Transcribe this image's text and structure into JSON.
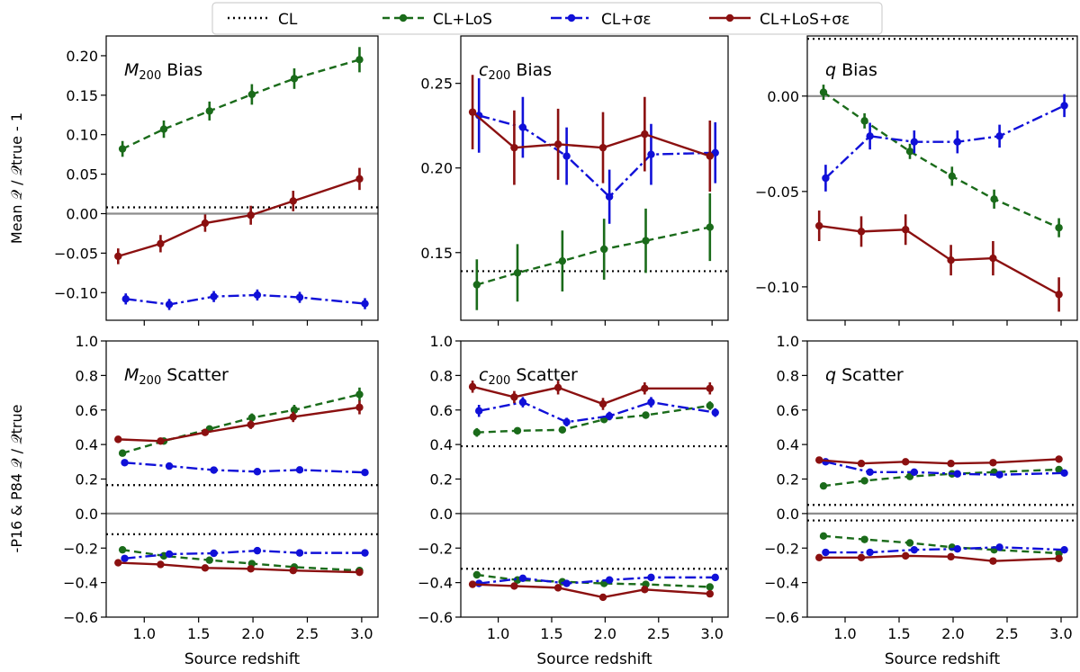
{
  "legend": {
    "entries": [
      {
        "key": "CL",
        "label": "CL",
        "color": "#000000",
        "dash": "2,4",
        "marker": false
      },
      {
        "key": "CL_LoS",
        "label": "CL+LoS",
        "color": "#1a6b1a",
        "dash": "8,5",
        "marker": true
      },
      {
        "key": "CL_se",
        "label": "CL+σε",
        "color": "#1010d8",
        "dash": "12,4,3,4",
        "marker": true
      },
      {
        "key": "CL_LoS_se",
        "label": "CL+LoS+σε",
        "color": "#8b1010",
        "dash": "",
        "marker": true
      }
    ]
  },
  "chart_data": [
    {
      "id": "m200_bias",
      "type": "line",
      "title": "M200 Bias",
      "title_main": "M",
      "title_sub": "200",
      "title_rest": " Bias",
      "ylim": [
        -0.135,
        0.225
      ],
      "yticks": [
        -0.1,
        -0.05,
        0.0,
        0.05,
        0.1,
        0.15,
        0.2
      ],
      "ytick_labels": [
        "−0.10",
        "−0.05",
        "0.00",
        "0.05",
        "0.10",
        "0.15",
        "0.20"
      ],
      "xlim": [
        0.65,
        3.15
      ],
      "xticks": [
        1.0,
        1.5,
        2.0,
        2.5,
        3.0
      ],
      "xtick_labels": [
        "1.0",
        "1.5",
        "2.0",
        "2.5",
        "3.0"
      ],
      "xlabel": "Source redshift",
      "ylabel": "Mean 𝒬 / 𝒬true - 1",
      "refline": 0,
      "cl_lines": [
        0.008
      ],
      "series": [
        {
          "key": "CL_LoS",
          "x": [
            0.8,
            1.18,
            1.6,
            1.99,
            2.38,
            2.98
          ],
          "y": [
            0.082,
            0.107,
            0.13,
            0.151,
            0.171,
            0.195
          ],
          "err": [
            0.01,
            0.011,
            0.012,
            0.013,
            0.013,
            0.016
          ]
        },
        {
          "key": "CL_LoS_se",
          "x": [
            0.76,
            1.15,
            1.56,
            1.98,
            2.37,
            2.98
          ],
          "y": [
            -0.054,
            -0.038,
            -0.012,
            -0.002,
            0.016,
            0.044
          ],
          "err": [
            0.01,
            0.011,
            0.011,
            0.012,
            0.013,
            0.014
          ]
        },
        {
          "key": "CL_se",
          "x": [
            0.83,
            1.23,
            1.64,
            2.04,
            2.43,
            3.03
          ],
          "y": [
            -0.108,
            -0.115,
            -0.105,
            -0.103,
            -0.106,
            -0.114
          ],
          "err": [
            0.007,
            0.007,
            0.007,
            0.007,
            0.007,
            0.007
          ]
        }
      ]
    },
    {
      "id": "c200_bias",
      "type": "line",
      "title": "c200 Bias",
      "title_main": "c",
      "title_sub": "200",
      "title_rest": " Bias",
      "ylim": [
        0.11,
        0.278
      ],
      "yticks": [
        0.15,
        0.2,
        0.25
      ],
      "ytick_labels": [
        "0.15",
        "0.20",
        "0.25"
      ],
      "xlim": [
        0.65,
        3.15
      ],
      "xticks": [
        1.0,
        1.5,
        2.0,
        2.5,
        3.0
      ],
      "xtick_labels": [
        "1.0",
        "1.5",
        "2.0",
        "2.5",
        "3.0"
      ],
      "xlabel": "Source redshift",
      "ylabel": "",
      "refline": null,
      "cl_lines": [
        0.139
      ],
      "series": [
        {
          "key": "CL_LoS",
          "x": [
            0.8,
            1.18,
            1.6,
            1.99,
            2.38,
            2.98
          ],
          "y": [
            0.131,
            0.138,
            0.145,
            0.152,
            0.157,
            0.165
          ],
          "err": [
            0.015,
            0.017,
            0.018,
            0.018,
            0.019,
            0.02
          ]
        },
        {
          "key": "CL_se",
          "x": [
            0.82,
            1.23,
            1.64,
            2.04,
            2.43,
            3.03
          ],
          "y": [
            0.231,
            0.224,
            0.207,
            0.183,
            0.208,
            0.209
          ],
          "err": [
            0.022,
            0.018,
            0.017,
            0.016,
            0.018,
            0.018
          ]
        },
        {
          "key": "CL_LoS_se",
          "x": [
            0.76,
            1.15,
            1.56,
            1.98,
            2.37,
            2.98
          ],
          "y": [
            0.233,
            0.212,
            0.214,
            0.212,
            0.22,
            0.207
          ],
          "err": [
            0.022,
            0.022,
            0.021,
            0.021,
            0.022,
            0.021
          ]
        }
      ]
    },
    {
      "id": "q_bias",
      "type": "line",
      "title": "q Bias",
      "title_main": "q",
      "title_sub": "",
      "title_rest": " Bias",
      "ylim": [
        -0.1175,
        0.0315
      ],
      "yticks": [
        -0.1,
        -0.05,
        0.0
      ],
      "ytick_labels": [
        "−0.10",
        "−0.05",
        "0.00"
      ],
      "xlim": [
        0.65,
        3.15
      ],
      "xticks": [
        1.0,
        1.5,
        2.0,
        2.5,
        3.0
      ],
      "xtick_labels": [
        "1.0",
        "1.5",
        "2.0",
        "2.5",
        "3.0"
      ],
      "xlabel": "Source redshift",
      "ylabel": "",
      "refline": 0,
      "cl_lines": [
        0.03
      ],
      "series": [
        {
          "key": "CL_LoS",
          "x": [
            0.8,
            1.18,
            1.6,
            1.99,
            2.38,
            2.98
          ],
          "y": [
            0.002,
            -0.013,
            -0.029,
            -0.042,
            -0.054,
            -0.069
          ],
          "err": [
            0.004,
            0.004,
            0.004,
            0.005,
            0.005,
            0.005
          ]
        },
        {
          "key": "CL_se",
          "x": [
            0.82,
            1.23,
            1.64,
            2.04,
            2.43,
            3.03
          ],
          "y": [
            -0.043,
            -0.021,
            -0.024,
            -0.024,
            -0.021,
            -0.005
          ],
          "err": [
            0.007,
            0.007,
            0.006,
            0.006,
            0.006,
            0.006
          ]
        },
        {
          "key": "CL_LoS_se",
          "x": [
            0.76,
            1.15,
            1.56,
            1.98,
            2.37,
            2.98
          ],
          "y": [
            -0.068,
            -0.071,
            -0.07,
            -0.086,
            -0.085,
            -0.104
          ],
          "err": [
            0.008,
            0.008,
            0.008,
            0.008,
            0.009,
            0.009
          ]
        }
      ]
    },
    {
      "id": "m200_scatter",
      "type": "line",
      "title": "M200 Scatter",
      "title_main": "M",
      "title_sub": "200",
      "title_rest": " Scatter",
      "ylim": [
        -0.6,
        1.0
      ],
      "yticks": [
        -0.6,
        -0.4,
        -0.2,
        0.0,
        0.2,
        0.4,
        0.6,
        0.8,
        1.0
      ],
      "ytick_labels": [
        "−0.6",
        "−0.4",
        "−0.2",
        "0.0",
        "0.2",
        "0.4",
        "0.6",
        "0.8",
        "1.0"
      ],
      "xlim": [
        0.65,
        3.15
      ],
      "xticks": [
        1.0,
        1.5,
        2.0,
        2.5,
        3.0
      ],
      "xtick_labels": [
        "1.0",
        "1.5",
        "2.0",
        "2.5",
        "3.0"
      ],
      "xlabel": "Source redshift",
      "ylabel": "-P16 & P84 𝒬 / 𝒬true",
      "refline": 0,
      "cl_lines": [
        0.165,
        -0.12
      ],
      "series": [
        {
          "key": "CL_LoS",
          "x": [
            0.8,
            1.18,
            1.6,
            1.99,
            2.38,
            2.98
          ],
          "y": [
            0.35,
            0.42,
            0.49,
            0.555,
            0.6,
            0.69
          ],
          "err": [
            0.015,
            0.015,
            0.02,
            0.025,
            0.03,
            0.04
          ]
        },
        {
          "key": "CL_LoS_se",
          "x": [
            0.76,
            1.15,
            1.56,
            1.98,
            2.37,
            2.98
          ],
          "y": [
            0.43,
            0.42,
            0.47,
            0.515,
            0.56,
            0.615
          ],
          "err": [
            0.015,
            0.015,
            0.02,
            0.025,
            0.03,
            0.04
          ]
        },
        {
          "key": "CL_se",
          "x": [
            0.82,
            1.23,
            1.64,
            2.04,
            2.43,
            3.03
          ],
          "y": [
            0.295,
            0.275,
            0.252,
            0.243,
            0.253,
            0.238
          ],
          "err": [
            0.008,
            0.008,
            0.008,
            0.008,
            0.008,
            0.008
          ]
        },
        {
          "key": "CL_LoS",
          "x": [
            0.8,
            1.18,
            1.6,
            1.99,
            2.38,
            2.98
          ],
          "y": [
            -0.21,
            -0.245,
            -0.27,
            -0.29,
            -0.31,
            -0.33
          ],
          "err": [
            0.008,
            0.008,
            0.008,
            0.008,
            0.008,
            0.008
          ]
        },
        {
          "key": "CL_se",
          "x": [
            0.82,
            1.23,
            1.64,
            2.04,
            2.43,
            3.03
          ],
          "y": [
            -0.26,
            -0.235,
            -0.23,
            -0.215,
            -0.228,
            -0.228
          ],
          "err": [
            0.008,
            0.008,
            0.008,
            0.008,
            0.008,
            0.008
          ]
        },
        {
          "key": "CL_LoS_se",
          "x": [
            0.76,
            1.15,
            1.56,
            1.98,
            2.37,
            2.98
          ],
          "y": [
            -0.285,
            -0.295,
            -0.315,
            -0.32,
            -0.33,
            -0.34
          ],
          "err": [
            0.008,
            0.008,
            0.008,
            0.008,
            0.008,
            0.008
          ]
        }
      ]
    },
    {
      "id": "c200_scatter",
      "type": "line",
      "title": "c200 Scatter",
      "title_main": "c",
      "title_sub": "200",
      "title_rest": " Scatter",
      "ylim": [
        -0.6,
        1.0
      ],
      "yticks": [
        -0.6,
        -0.4,
        -0.2,
        0.0,
        0.2,
        0.4,
        0.6,
        0.8,
        1.0
      ],
      "ytick_labels": [
        "−0.6",
        "−0.4",
        "−0.2",
        "0.0",
        "0.2",
        "0.4",
        "0.6",
        "0.8",
        "1.0"
      ],
      "xlim": [
        0.65,
        3.15
      ],
      "xticks": [
        1.0,
        1.5,
        2.0,
        2.5,
        3.0
      ],
      "xtick_labels": [
        "1.0",
        "1.5",
        "2.0",
        "2.5",
        "3.0"
      ],
      "xlabel": "Source redshift",
      "ylabel": "",
      "refline": 0,
      "cl_lines": [
        0.39,
        -0.32
      ],
      "series": [
        {
          "key": "CL_LoS",
          "x": [
            0.8,
            1.18,
            1.6,
            1.99,
            2.38,
            2.98
          ],
          "y": [
            0.47,
            0.48,
            0.485,
            0.545,
            0.57,
            0.625
          ],
          "err": [
            0.025,
            0.02,
            0.02,
            0.02,
            0.02,
            0.025
          ]
        },
        {
          "key": "CL_se",
          "x": [
            0.82,
            1.23,
            1.64,
            2.04,
            2.43,
            3.03
          ],
          "y": [
            0.595,
            0.645,
            0.53,
            0.565,
            0.645,
            0.585
          ],
          "err": [
            0.035,
            0.03,
            0.025,
            0.025,
            0.03,
            0.025
          ]
        },
        {
          "key": "CL_LoS_se",
          "x": [
            0.76,
            1.15,
            1.56,
            1.98,
            2.37,
            2.98
          ],
          "y": [
            0.735,
            0.675,
            0.73,
            0.635,
            0.725,
            0.725
          ],
          "err": [
            0.035,
            0.035,
            0.04,
            0.035,
            0.035,
            0.035
          ]
        },
        {
          "key": "CL_LoS",
          "x": [
            0.8,
            1.18,
            1.6,
            1.99,
            2.38,
            2.98
          ],
          "y": [
            -0.355,
            -0.385,
            -0.395,
            -0.405,
            -0.41,
            -0.425
          ],
          "err": [
            0.015,
            0.015,
            0.015,
            0.015,
            0.015,
            0.015
          ]
        },
        {
          "key": "CL_se",
          "x": [
            0.82,
            1.23,
            1.64,
            2.04,
            2.43,
            3.03
          ],
          "y": [
            -0.405,
            -0.375,
            -0.405,
            -0.385,
            -0.37,
            -0.37
          ],
          "err": [
            0.015,
            0.015,
            0.015,
            0.015,
            0.015,
            0.015
          ]
        },
        {
          "key": "CL_LoS_se",
          "x": [
            0.76,
            1.15,
            1.56,
            1.98,
            2.37,
            2.98
          ],
          "y": [
            -0.41,
            -0.42,
            -0.43,
            -0.485,
            -0.44,
            -0.465
          ],
          "err": [
            0.015,
            0.015,
            0.015,
            0.015,
            0.015,
            0.015
          ]
        }
      ]
    },
    {
      "id": "q_scatter",
      "type": "line",
      "title": "q Scatter",
      "title_main": "q",
      "title_sub": "",
      "title_rest": " Scatter",
      "ylim": [
        -0.6,
        1.0
      ],
      "yticks": [
        -0.6,
        -0.4,
        -0.2,
        0.0,
        0.2,
        0.4,
        0.6,
        0.8,
        1.0
      ],
      "ytick_labels": [
        "−0.6",
        "−0.4",
        "−0.2",
        "0.0",
        "0.2",
        "0.4",
        "0.6",
        "0.8",
        "1.0"
      ],
      "xlim": [
        0.65,
        3.15
      ],
      "xticks": [
        1.0,
        1.5,
        2.0,
        2.5,
        3.0
      ],
      "xtick_labels": [
        "1.0",
        "1.5",
        "2.0",
        "2.5",
        "3.0"
      ],
      "xlabel": "Source redshift",
      "ylabel": "",
      "refline": 0,
      "cl_lines": [
        0.05,
        -0.04
      ],
      "series": [
        {
          "key": "CL_LoS",
          "x": [
            0.8,
            1.18,
            1.6,
            1.99,
            2.38,
            2.98
          ],
          "y": [
            0.16,
            0.19,
            0.215,
            0.23,
            0.24,
            0.255
          ],
          "err": [
            0.005,
            0.005,
            0.005,
            0.005,
            0.005,
            0.005
          ]
        },
        {
          "key": "CL_se",
          "x": [
            0.82,
            1.23,
            1.64,
            2.04,
            2.43,
            3.03
          ],
          "y": [
            0.3,
            0.24,
            0.24,
            0.23,
            0.225,
            0.235
          ],
          "err": [
            0.005,
            0.005,
            0.005,
            0.005,
            0.005,
            0.005
          ]
        },
        {
          "key": "CL_LoS_se",
          "x": [
            0.76,
            1.15,
            1.56,
            1.98,
            2.37,
            2.98
          ],
          "y": [
            0.31,
            0.29,
            0.3,
            0.29,
            0.295,
            0.315
          ],
          "err": [
            0.005,
            0.005,
            0.005,
            0.005,
            0.005,
            0.005
          ]
        },
        {
          "key": "CL_LoS",
          "x": [
            0.8,
            1.18,
            1.6,
            1.99,
            2.38,
            2.98
          ],
          "y": [
            -0.13,
            -0.15,
            -0.17,
            -0.195,
            -0.21,
            -0.23
          ],
          "err": [
            0.005,
            0.005,
            0.005,
            0.005,
            0.005,
            0.005
          ]
        },
        {
          "key": "CL_se",
          "x": [
            0.82,
            1.23,
            1.64,
            2.04,
            2.43,
            3.03
          ],
          "y": [
            -0.225,
            -0.225,
            -0.21,
            -0.205,
            -0.195,
            -0.21
          ],
          "err": [
            0.005,
            0.005,
            0.005,
            0.005,
            0.005,
            0.005
          ]
        },
        {
          "key": "CL_LoS_se",
          "x": [
            0.76,
            1.15,
            1.56,
            1.98,
            2.37,
            2.98
          ],
          "y": [
            -0.255,
            -0.255,
            -0.245,
            -0.25,
            -0.275,
            -0.26
          ],
          "err": [
            0.005,
            0.005,
            0.005,
            0.005,
            0.005,
            0.005
          ]
        }
      ]
    }
  ]
}
